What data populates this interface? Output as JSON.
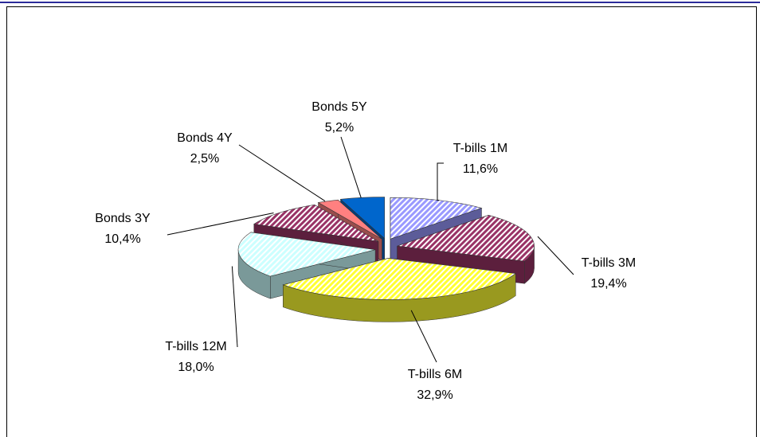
{
  "chart_data": {
    "type": "pie3d",
    "categories": [
      "T-bills 1M",
      "T-bills 3M",
      "T-bills 6M",
      "T-bills 12M",
      "Bonds 3Y",
      "Bonds 4Y",
      "Bonds 5Y"
    ],
    "values": [
      11.6,
      19.4,
      32.9,
      18.0,
      10.4,
      2.5,
      5.2
    ],
    "value_labels": [
      "11,6%",
      "19,4%",
      "32,9%",
      "18,0%",
      "10,4%",
      "2,5%",
      "5,2%"
    ],
    "colors": [
      "#9999ff",
      "#993366",
      "#ffff33",
      "#ccffff",
      "#993366",
      "#ff8080",
      "#0066cc"
    ],
    "hatch": [
      true,
      true,
      true,
      true,
      true,
      false,
      false
    ]
  }
}
